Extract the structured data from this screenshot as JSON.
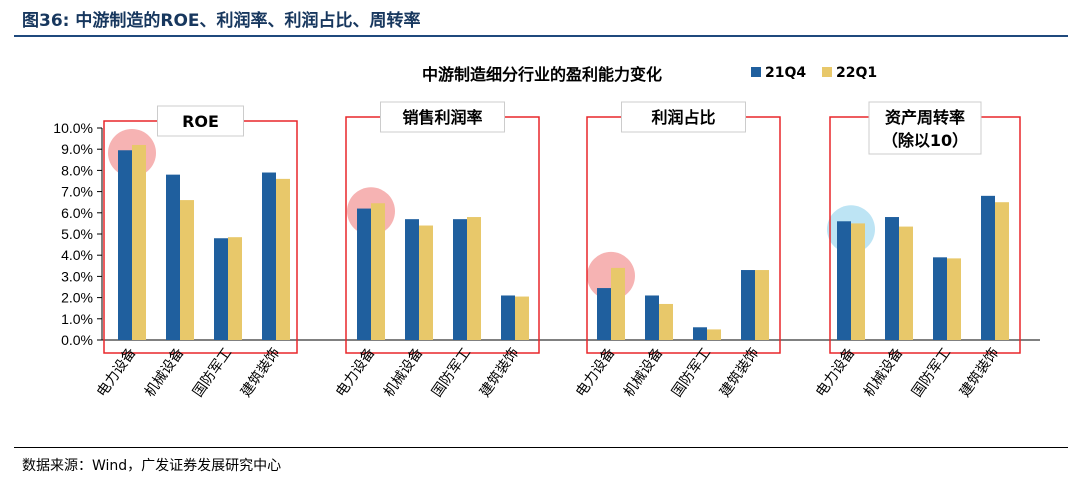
{
  "figure": {
    "title": "图36:  中游制造的ROE、利润率、利润占比、周转率",
    "source": "数据来源：Wind，广发证券发展研究中心"
  },
  "colors": {
    "series_1": "#1f5f9e",
    "series_2": "#e8c86a",
    "frame": "#e8262a",
    "highlight_red": "#f08080",
    "highlight_blue": "#87ceeb",
    "title_blue": "#17375e"
  },
  "chart_data": {
    "type": "bar",
    "title": "中游制造细分行业的盈利能力变化",
    "ylim": [
      0,
      10
    ],
    "yticks": [
      "0.0%",
      "1.0%",
      "2.0%",
      "3.0%",
      "4.0%",
      "5.0%",
      "6.0%",
      "7.0%",
      "8.0%",
      "9.0%",
      "10.0%"
    ],
    "legend_position": "top-right",
    "categories": [
      "电力设备",
      "机械设备",
      "国防军工",
      "建筑装饰"
    ],
    "series_names": [
      "21Q4",
      "22Q1"
    ],
    "groups": [
      {
        "label_lines": [
          "ROE"
        ],
        "values_21q4": [
          8.95,
          7.8,
          4.8,
          7.9
        ],
        "values_22q1": [
          9.2,
          6.6,
          4.85,
          7.6
        ],
        "highlight_color": "red"
      },
      {
        "label_lines": [
          "销售利润率"
        ],
        "values_21q4": [
          6.2,
          5.7,
          5.7,
          2.1
        ],
        "values_22q1": [
          6.45,
          5.4,
          5.8,
          2.05
        ],
        "highlight_color": "red"
      },
      {
        "label_lines": [
          "利润占比"
        ],
        "values_21q4": [
          2.45,
          2.1,
          0.6,
          3.3
        ],
        "values_22q1": [
          3.4,
          1.7,
          0.5,
          3.3
        ],
        "highlight_color": "red"
      },
      {
        "label_lines": [
          "资产周转率",
          "（除以10）"
        ],
        "values_21q4": [
          5.6,
          5.8,
          3.9,
          6.8
        ],
        "values_22q1": [
          5.5,
          5.35,
          3.85,
          6.5
        ],
        "highlight_color": "blue"
      }
    ]
  }
}
